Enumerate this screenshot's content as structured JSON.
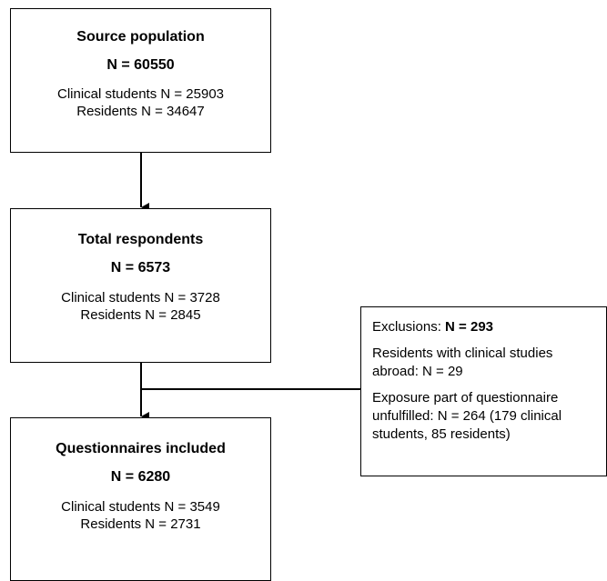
{
  "boxes": {
    "source": {
      "title": "Source population",
      "count": "N = 60550",
      "lines": [
        "Clinical students N = 25903",
        "Residents N = 34647"
      ]
    },
    "respondents": {
      "title": "Total respondents",
      "count": "N = 6573",
      "lines": [
        "Clinical students N = 3728",
        "Residents N = 2845"
      ]
    },
    "included": {
      "title": "Questionnaires included",
      "count": "N = 6280",
      "lines": [
        "Clinical students N = 3549",
        "Residents N = 2731"
      ]
    },
    "exclusions": {
      "label": "Exclusions: ",
      "count": "N = 293",
      "item1": [
        "Residents with clinical studies",
        "abroad: N = 29"
      ],
      "item2": [
        "Exposure part of questionnaire",
        "unfulfilled: N = 264 (179 clinical",
        "students, 85 residents)"
      ]
    }
  },
  "colors": {
    "stroke": "#000000",
    "background": "#ffffff"
  }
}
